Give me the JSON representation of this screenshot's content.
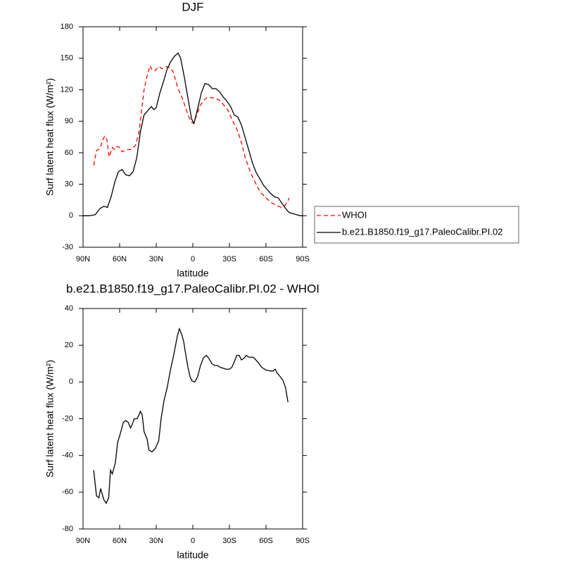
{
  "chart_data": [
    {
      "type": "line",
      "title": "DJF",
      "xlabel": "latitude",
      "ylabel": "Surf latent heat flux (W/m²)",
      "xlim": [
        90,
        -90
      ],
      "xticks": [
        {
          "value": 90,
          "label": "90N"
        },
        {
          "value": 60,
          "label": "60N"
        },
        {
          "value": 30,
          "label": "30N"
        },
        0,
        {
          "value": -30,
          "label": "30S"
        },
        {
          "value": -60,
          "label": "60S"
        },
        {
          "value": -90,
          "label": "90S"
        }
      ],
      "ylim": [
        -30,
        180
      ],
      "yticks": [
        -30,
        0,
        30,
        60,
        90,
        120,
        150,
        180
      ],
      "legend": "right",
      "series": [
        {
          "name": "WHOI",
          "color": "#ff0000",
          "dashed": true,
          "x": [
            81.3,
            79,
            76,
            74,
            72,
            70.4,
            68.6,
            66,
            64,
            62,
            60,
            58,
            54,
            51,
            47,
            44,
            42,
            40,
            37.5,
            35,
            33.5,
            31,
            28,
            25,
            22,
            18.5,
            16,
            14,
            11,
            8.6,
            6,
            3.5,
            1,
            -0.6,
            -3.5,
            -6,
            -9,
            -12,
            -18,
            -22,
            -25,
            -29,
            -32,
            -37,
            -40,
            -43,
            -47,
            -51,
            -55,
            -60,
            -65,
            -70,
            -73,
            -75.6,
            -78,
            -79
          ],
          "values": [
            48,
            62,
            64,
            72,
            76,
            72,
            56,
            65,
            63,
            66,
            65,
            61,
            63,
            63,
            67,
            80,
            100,
            120,
            133,
            143,
            139,
            138,
            142,
            140,
            142,
            141,
            137,
            128,
            118,
            112,
            103,
            95,
            89,
            88,
            97,
            105,
            110,
            113,
            112,
            110,
            106,
            100,
            92,
            80,
            69,
            55,
            42,
            32,
            23,
            17,
            12,
            9,
            8,
            10,
            14,
            17
          ]
        },
        {
          "name": "b.e21.B1850.f19_g17.PaleoCalibr.PI.02",
          "color": "#000000",
          "dashed": false,
          "x": [
            90,
            85,
            80,
            76,
            73,
            70,
            67,
            64,
            61,
            58,
            55,
            52,
            49,
            46,
            43,
            40,
            37,
            34,
            32,
            30,
            27,
            24,
            21,
            18,
            15,
            12,
            10,
            7,
            4,
            1,
            -1,
            -4,
            -7,
            -10,
            -13,
            -16,
            -19,
            -22,
            -25,
            -28,
            -31,
            -34,
            -37,
            -40,
            -43,
            -46,
            -49,
            -52,
            -55,
            -58,
            -61,
            -64,
            -67,
            -70,
            -73,
            -76,
            -79,
            -82,
            -85,
            -88,
            -90
          ],
          "values": [
            0,
            0,
            1,
            7,
            9,
            8,
            18,
            32,
            42,
            44,
            39,
            38,
            42,
            55,
            80,
            96,
            100,
            104,
            101,
            103,
            117,
            128,
            140,
            147,
            152,
            155,
            150,
            132,
            112,
            92,
            88,
            102,
            117,
            126,
            125,
            121,
            121,
            118,
            113,
            109,
            104,
            96,
            94,
            86,
            74,
            62,
            50,
            41,
            35,
            29,
            25,
            21,
            18,
            17,
            12,
            7,
            3,
            2,
            1,
            0,
            0
          ]
        }
      ]
    },
    {
      "type": "line",
      "title": "b.e21.B1850.f19_g17.PaleoCalibr.PI.02 - WHOI",
      "xlabel": "latitude",
      "ylabel": "Surf latent heat flux (W/m²)",
      "xlim": [
        90,
        -90
      ],
      "xticks": [
        {
          "value": 90,
          "label": "90N"
        },
        {
          "value": 60,
          "label": "60N"
        },
        {
          "value": 30,
          "label": "30N"
        },
        0,
        {
          "value": -30,
          "label": "30S"
        },
        {
          "value": -60,
          "label": "60S"
        },
        {
          "value": -90,
          "label": "90S"
        }
      ],
      "ylim": [
        -80,
        40
      ],
      "yticks": [
        -80,
        -60,
        -40,
        -20,
        0,
        20,
        40
      ],
      "series": [
        {
          "color": "#000000",
          "dashed": false,
          "x": [
            81.3,
            79,
            77,
            75.6,
            73,
            71,
            69,
            67.5,
            66,
            63.5,
            61.7,
            59.4,
            57,
            55,
            53,
            51,
            49.6,
            48,
            45.6,
            43,
            41.5,
            40,
            37.5,
            36,
            33.5,
            30.6,
            28,
            26,
            23.6,
            21,
            18.5,
            15.6,
            12.7,
            11,
            9.2,
            7.5,
            5.8,
            4,
            2.3,
            0.6,
            -1.7,
            -4,
            -6.3,
            -8.6,
            -11,
            -13,
            -15.6,
            -18,
            -20,
            -22.5,
            -24.8,
            -27,
            -30,
            -32,
            -34.6,
            -36,
            -38,
            -39.8,
            -42,
            -43.8,
            -46,
            -49.6,
            -53,
            -56.5,
            -60,
            -63.5,
            -65.8,
            -67.5,
            -69,
            -71.5,
            -73.8,
            -76,
            -78
          ],
          "values": [
            -48,
            -62,
            -63,
            -58,
            -64,
            -66,
            -63,
            -48,
            -50,
            -44,
            -33,
            -28,
            -22,
            -21,
            -22,
            -25,
            -23,
            -20,
            -20,
            -16,
            -18,
            -27,
            -31,
            -37,
            -38,
            -36,
            -32,
            -20,
            -10,
            -3,
            6,
            15,
            25,
            29,
            26,
            22,
            15,
            8,
            3,
            0.5,
            0,
            3,
            9,
            13,
            14.5,
            13,
            10,
            9,
            9,
            8,
            7.5,
            7,
            7,
            8,
            12,
            14.5,
            14.5,
            12,
            13,
            14.5,
            13.5,
            13.5,
            11,
            8,
            6.5,
            6,
            6,
            7,
            5,
            3,
            1,
            -3,
            -11
          ]
        }
      ]
    }
  ]
}
